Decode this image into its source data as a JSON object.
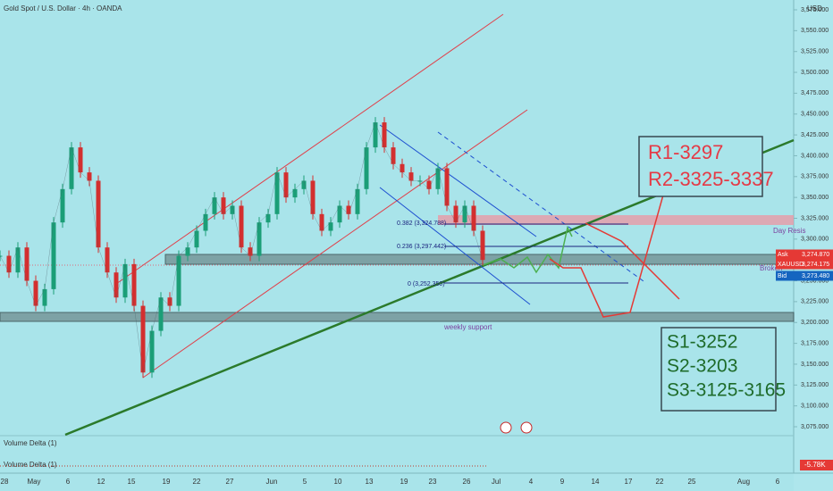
{
  "header": {
    "title": "Gold Spot / U.S. Dollar · 4h · OANDA",
    "currency": "USD"
  },
  "price_axis": {
    "ticks": [
      {
        "value": 3575,
        "label": "3,575.000"
      },
      {
        "value": 3550,
        "label": "3,550.000"
      },
      {
        "value": 3525,
        "label": "3,525.000"
      },
      {
        "value": 3500,
        "label": "3,500.000"
      },
      {
        "value": 3475,
        "label": "3,475.000"
      },
      {
        "value": 3450,
        "label": "3,450.000"
      },
      {
        "value": 3425,
        "label": "3,425.000"
      },
      {
        "value": 3400,
        "label": "3,400.000"
      },
      {
        "value": 3375,
        "label": "3,375.000"
      },
      {
        "value": 3350,
        "label": "3,350.000"
      },
      {
        "value": 3325,
        "label": "3,325.000"
      },
      {
        "value": 3300,
        "label": "3,300.000"
      },
      {
        "value": 3250,
        "label": "3,250.000"
      },
      {
        "value": 3225,
        "label": "3,225.000"
      },
      {
        "value": 3200,
        "label": "3,200.000"
      },
      {
        "value": 3175,
        "label": "3,175.000"
      },
      {
        "value": 3150,
        "label": "3,150.000"
      },
      {
        "value": 3125,
        "label": "3,125.000"
      },
      {
        "value": 3100,
        "label": "3,100.000"
      },
      {
        "value": 3075,
        "label": "3,075.000"
      }
    ],
    "tags": [
      {
        "name": "Ask",
        "value": "3,274.870"
      },
      {
        "name": "XAUUSD",
        "value": "3,274.175"
      },
      {
        "name": "Bid",
        "value": "3,273.480"
      }
    ]
  },
  "time_axis": [
    "28",
    "May",
    "6",
    "12",
    "15",
    "19",
    "22",
    "27",
    "Jun",
    "5",
    "10",
    "13",
    "19",
    "23",
    "26",
    "Jul",
    "4",
    "9",
    "14",
    "17",
    "22",
    "25",
    "Aug",
    "6"
  ],
  "price_series": [
    3280,
    3260,
    3290,
    3250,
    3220,
    3240,
    3320,
    3360,
    3410,
    3380,
    3370,
    3290,
    3260,
    3230,
    3270,
    3220,
    3140,
    3190,
    3230,
    3220,
    3280,
    3290,
    3310,
    3330,
    3350,
    3330,
    3340,
    3290,
    3280,
    3320,
    3330,
    3380,
    3350,
    3360,
    3370,
    3330,
    3310,
    3320,
    3340,
    3330,
    3360,
    3410,
    3440,
    3410,
    3390,
    3380,
    3370,
    3370,
    3360,
    3385,
    3340,
    3320,
    3340,
    3310,
    3275
  ],
  "annotations": {
    "resistance": [
      "R1-3297",
      "R2-3325-3337"
    ],
    "support": [
      "S1-3252",
      "S2-3203",
      "S3-3125-3165"
    ],
    "day_resis": "Day Resis",
    "broken": "Broken",
    "weekly_support": "weekly support",
    "fib": [
      "0.382 (3,324.788)",
      "0.236 (3,297.442)",
      "0 (3,252.350)"
    ]
  },
  "volume": {
    "panels": [
      "Volume Delta (1)",
      "Volume Delta (1)"
    ],
    "value": "-5.78K"
  }
}
